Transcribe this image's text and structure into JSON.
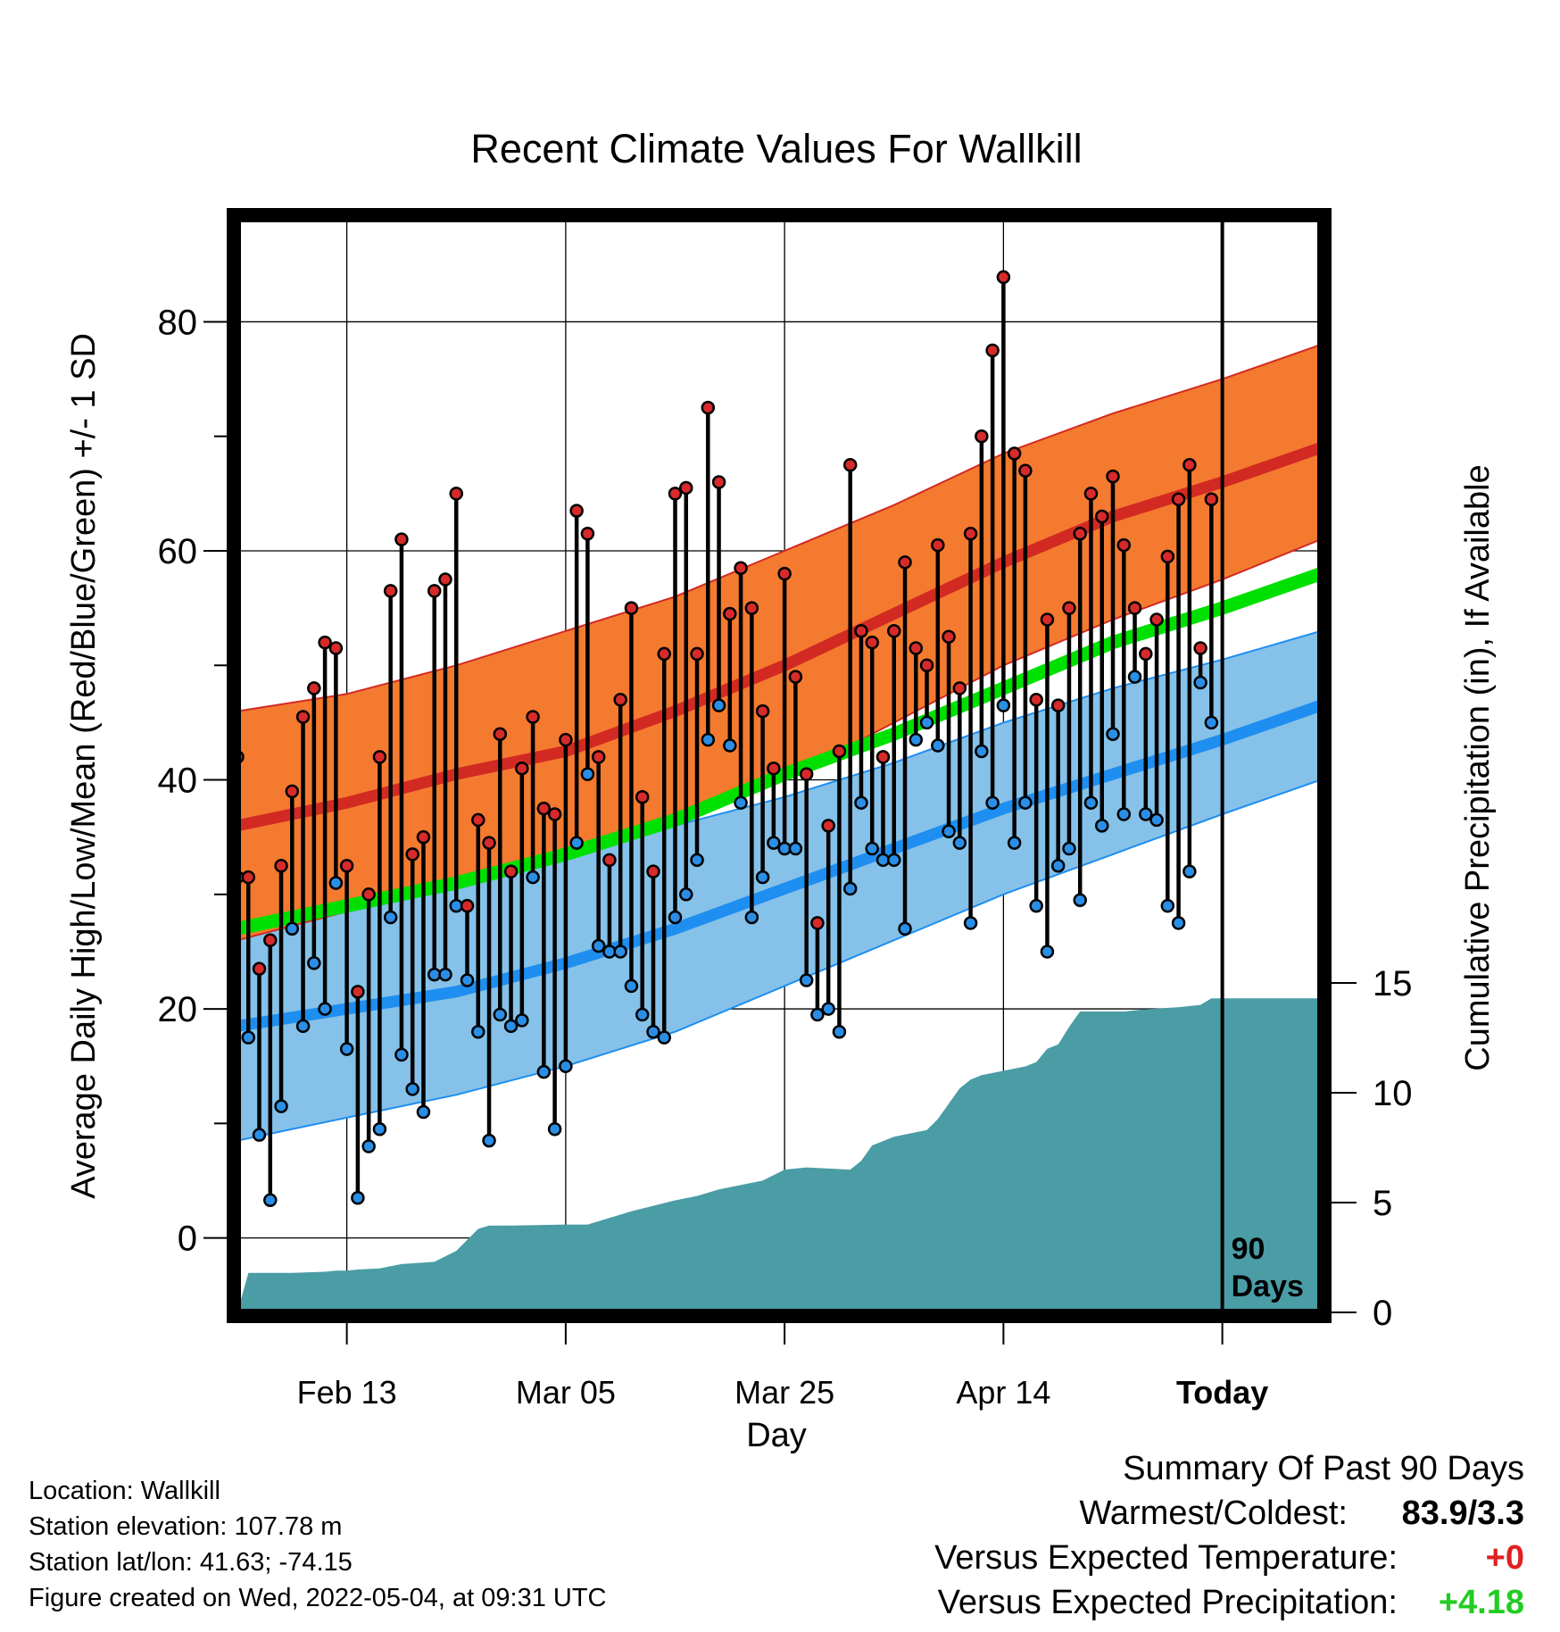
{
  "chart_data": {
    "type": "line",
    "title": "Recent Climate Values For Wallkill",
    "xlabel": "Day",
    "ylabel": "Average Daily High/Low/Mean (Red/Blue/Green) +/- 1 SD",
    "y2label": "Cumulative Precipitation (in), If Available",
    "x_ticks": [
      {
        "day": 10,
        "label": "Feb 13"
      },
      {
        "day": 30,
        "label": "Mar 05"
      },
      {
        "day": 50,
        "label": "Mar 25"
      },
      {
        "day": 70,
        "label": "Apr 14"
      },
      {
        "day": 90,
        "label": "Today"
      }
    ],
    "xlim": [
      0,
      99
    ],
    "ylim": [
      -6.5,
      89
    ],
    "y_ticks": [
      0,
      20,
      40,
      60,
      80
    ],
    "y2lim": [
      0,
      15
    ],
    "y2_ticks": [
      0,
      5,
      10,
      15
    ],
    "today_marker": {
      "day": 90,
      "label_line1": "90",
      "label_line2": "Days"
    },
    "normal_high": {
      "mean": {
        "x": [
          0,
          10,
          20,
          30,
          40,
          50,
          60,
          70,
          80,
          90,
          99
        ],
        "y": [
          36,
          38,
          40.5,
          42.5,
          46,
          50,
          54.5,
          59,
          63,
          66,
          69
        ]
      },
      "upper": {
        "x": [
          0,
          10,
          20,
          30,
          40,
          50,
          60,
          70,
          80,
          90,
          99
        ],
        "y": [
          46,
          47.5,
          50,
          53,
          56,
          60,
          64,
          68.5,
          72,
          75,
          78
        ]
      },
      "lower": {
        "x": [
          0,
          10,
          20,
          30,
          40,
          50,
          60,
          70,
          80,
          90,
          99
        ],
        "y": [
          26,
          28.5,
          31,
          33,
          36,
          40,
          45,
          50,
          54,
          57.5,
          61
        ]
      }
    },
    "normal_low": {
      "mean": {
        "x": [
          0,
          10,
          20,
          30,
          40,
          50,
          60,
          70,
          80,
          90,
          99
        ],
        "y": [
          18.5,
          20,
          21.5,
          24,
          27,
          30.5,
          34,
          37.5,
          40.5,
          43.5,
          46.5
        ]
      },
      "upper": {
        "x": [
          0,
          10,
          20,
          30,
          40,
          50,
          60,
          70,
          80,
          90,
          99
        ],
        "y": [
          28.5,
          29,
          31,
          33,
          36,
          38.5,
          41.5,
          45,
          48,
          50.5,
          53
        ]
      },
      "lower": {
        "x": [
          0,
          10,
          20,
          30,
          40,
          50,
          60,
          70,
          80,
          90,
          99
        ],
        "y": [
          8.5,
          10.5,
          12.5,
          15,
          18,
          22,
          26,
          30,
          33.5,
          37,
          40
        ]
      }
    },
    "normal_mean": {
      "x": [
        0,
        10,
        20,
        30,
        40,
        50,
        60,
        70,
        80,
        90,
        99
      ],
      "y": [
        27,
        29,
        31,
        33.5,
        36.5,
        40.5,
        44,
        48,
        52,
        55,
        58
      ]
    },
    "daily_high": [
      42,
      31.5,
      23.5,
      26,
      32.5,
      39,
      45.5,
      48,
      52,
      51.5,
      32.5,
      21.5,
      30,
      42,
      56.5,
      61,
      33.5,
      35,
      56.5,
      57.5,
      65,
      29,
      36.5,
      34.5,
      44,
      32,
      41,
      45.5,
      37.5,
      37,
      43.5,
      63.5,
      61.5,
      42,
      33,
      47,
      55,
      38.5,
      32,
      51,
      65,
      65.5,
      51,
      72.5,
      66,
      54.5,
      58.5,
      55,
      46,
      41,
      58,
      49,
      40.5,
      27.5,
      36,
      42.5,
      67.5,
      53,
      52,
      42,
      53,
      59,
      51.5,
      50,
      60.5,
      52.5,
      48,
      61.5,
      70,
      77.5,
      83.9,
      68.5,
      67,
      47,
      54,
      46.5,
      55,
      61.5,
      65,
      63,
      66.5,
      60.5,
      55,
      51,
      54,
      59.5,
      64.5,
      67.5,
      51.5,
      64.5
    ],
    "daily_low": [
      31.5,
      17.5,
      9,
      3.3,
      11.5,
      27,
      18.5,
      24,
      20,
      31,
      16.5,
      3.5,
      8,
      9.5,
      28,
      16,
      13,
      11,
      23,
      23,
      29,
      22.5,
      18,
      8.5,
      19.5,
      18.5,
      19,
      31.5,
      14.5,
      9.5,
      15,
      34.5,
      40.5,
      25.5,
      25,
      25,
      22,
      19.5,
      18,
      17.5,
      28,
      30,
      33,
      43.5,
      46.5,
      43,
      38,
      28,
      31.5,
      34.5,
      34,
      34,
      22.5,
      19.5,
      20,
      18,
      30.5,
      38,
      34,
      33,
      33,
      27,
      43.5,
      45,
      43,
      35.5,
      34.5,
      27.5,
      42.5,
      38,
      46.5,
      34.5,
      38,
      29,
      25,
      32.5,
      34,
      29.5,
      38,
      36,
      44,
      37,
      49,
      37,
      36.5,
      29,
      27.5,
      32,
      48.5,
      45
    ],
    "cumulative_precip": {
      "x": [
        0,
        1,
        2,
        5,
        8,
        9,
        10,
        11,
        13,
        15,
        18,
        20,
        22,
        23,
        25,
        30,
        32,
        34,
        36,
        40,
        42,
        44,
        48,
        50,
        52,
        56,
        57,
        58,
        60,
        62,
        63,
        64,
        66,
        67,
        68,
        70,
        72,
        73,
        74,
        75,
        76,
        77,
        81,
        83,
        86,
        88,
        89,
        99
      ],
      "y": [
        0,
        1.8,
        1.8,
        1.8,
        1.85,
        1.9,
        1.9,
        1.95,
        2,
        2.2,
        2.3,
        2.8,
        3.8,
        3.95,
        3.95,
        4,
        4,
        4.3,
        4.6,
        5.1,
        5.3,
        5.6,
        6,
        6.5,
        6.6,
        6.5,
        6.9,
        7.6,
        8,
        8.2,
        8.3,
        8.8,
        10.2,
        10.6,
        10.8,
        11,
        11.2,
        11.4,
        12,
        12.2,
        13,
        13.7,
        13.7,
        13.8,
        13.9,
        14,
        14.3,
        14.3
      ]
    }
  },
  "info": {
    "location": "Location: Wallkill",
    "elevation": "Station elevation: 107.78 m",
    "latlon": "Station lat/lon: 41.63; -74.15",
    "created": "Figure created on Wed, 2022-05-04, at 09:31 UTC"
  },
  "summary": {
    "heading": "Summary Of Past 90 Days",
    "warm_label": "Warmest/Coldest:",
    "warm_value": "83.9/3.3",
    "temp_label": "Versus Expected Temperature:",
    "temp_value": "+0",
    "precip_label": "Versus Expected Precipitation:",
    "precip_value": "+4.18"
  },
  "colors": {
    "high_band": "#f47a30",
    "high_mean": "#d22a22",
    "low_band": "#85c1e8",
    "low_mean": "#1e8ef0",
    "mean_line": "#00e000",
    "precip_fill": "#4a9ca5",
    "high_dot": "#d72a2a",
    "low_dot": "#2a8ee6",
    "temp_value": "#e02020",
    "precip_value": "#22cc22"
  }
}
